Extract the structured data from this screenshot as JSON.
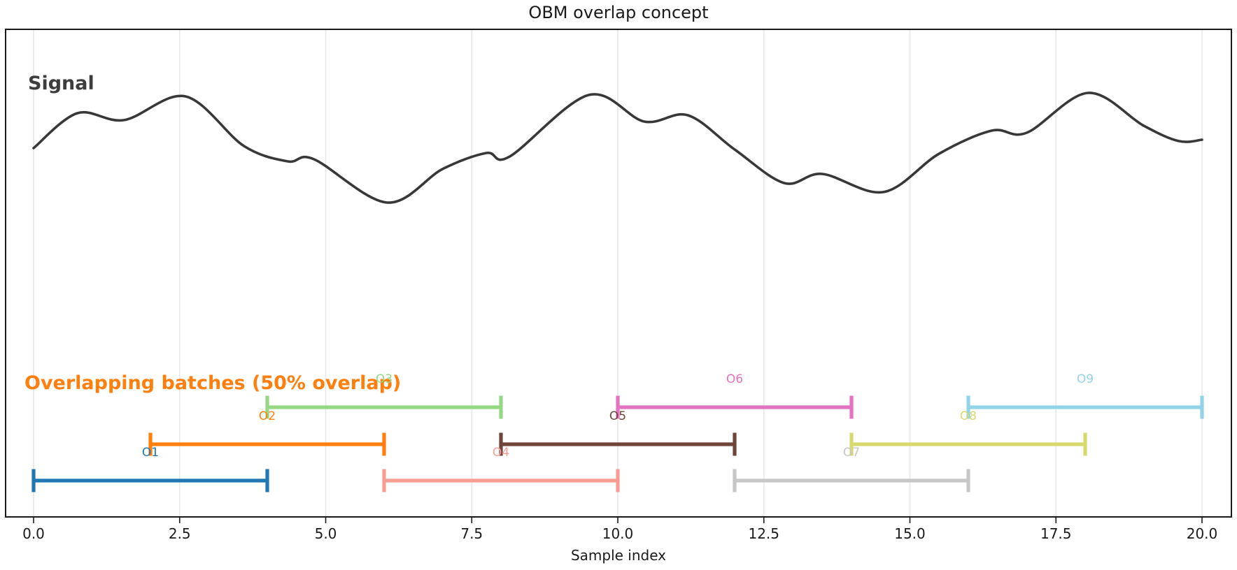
{
  "chart_data": {
    "type": "line",
    "title": "OBM overlap concept",
    "xlabel": "Sample index",
    "ylabel": "",
    "xlim": [
      -0.48,
      20.5
    ],
    "grid": "vertical gridlines at each x tick, light gray",
    "legend_position": "none (inline text annotations)",
    "x_tick_labels": [
      "0.0",
      "2.5",
      "5.0",
      "7.5",
      "10.0",
      "12.5",
      "15.0",
      "17.5",
      "20.0"
    ],
    "x_tick_values": [
      0,
      2.5,
      5,
      7.5,
      10,
      12.5,
      15,
      17.5,
      20
    ],
    "signal": {
      "label": "Signal",
      "label_color": "#3d3d3d",
      "color": "#383838",
      "note": "points are [sample_index, relative_amplitude 0..1]",
      "points": [
        [
          0,
          0.497
        ],
        [
          0.75,
          0.815
        ],
        [
          1.55,
          0.752
        ],
        [
          2.6,
          0.968
        ],
        [
          3.6,
          0.516
        ],
        [
          4.35,
          0.376
        ],
        [
          4.8,
          0.395
        ],
        [
          6.05,
          0.0
        ],
        [
          7.0,
          0.306
        ],
        [
          7.75,
          0.452
        ],
        [
          8.15,
          0.42
        ],
        [
          9.5,
          0.981
        ],
        [
          10.45,
          0.739
        ],
        [
          11.2,
          0.796
        ],
        [
          12.0,
          0.484
        ],
        [
          12.85,
          0.178
        ],
        [
          13.5,
          0.261
        ],
        [
          14.55,
          0.096
        ],
        [
          15.5,
          0.446
        ],
        [
          16.4,
          0.656
        ],
        [
          17.0,
          0.637
        ],
        [
          18.05,
          1.0
        ],
        [
          19.0,
          0.701
        ],
        [
          19.6,
          0.561
        ],
        [
          20,
          0.573
        ]
      ]
    },
    "batches": {
      "heading": "Overlapping batches (50% overlap)",
      "heading_color": "#ff7f0e",
      "overlap_percent": 50,
      "batch_size_samples": 4,
      "hop_samples": 2,
      "items": [
        {
          "label": "O1",
          "start": 0,
          "end": 4,
          "color": "#1f77b4",
          "row": "bottom"
        },
        {
          "label": "O2",
          "start": 2,
          "end": 6,
          "color": "#ff7f0e",
          "row": "middle"
        },
        {
          "label": "O3",
          "start": 4,
          "end": 8,
          "color": "#94d884",
          "row": "top"
        },
        {
          "label": "O4",
          "start": 6,
          "end": 10,
          "color": "#f89c94",
          "row": "bottom"
        },
        {
          "label": "O5",
          "start": 8,
          "end": 12,
          "color": "#6f4439",
          "row": "middle"
        },
        {
          "label": "O6",
          "start": 10,
          "end": 14,
          "color": "#e372c1",
          "row": "top"
        },
        {
          "label": "O7",
          "start": 12,
          "end": 16,
          "color": "#c7c7c7",
          "row": "bottom"
        },
        {
          "label": "O8",
          "start": 14,
          "end": 18,
          "color": "#d8d86f",
          "row": "middle"
        },
        {
          "label": "O9",
          "start": 16,
          "end": 20,
          "color": "#92d3e7",
          "row": "top"
        }
      ]
    },
    "colors": {
      "spine": "#1a1a1a",
      "gridline": "#e8e8e8",
      "background": "#ffffff"
    }
  }
}
